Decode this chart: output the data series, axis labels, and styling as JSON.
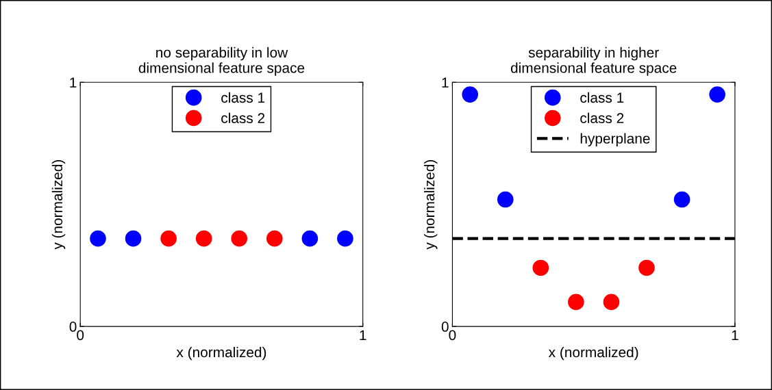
{
  "chart_data": [
    {
      "type": "scatter",
      "title": "no separability in low\ndimensional feature space",
      "xlabel": "x (normalized)",
      "ylabel": "y (normalized)",
      "xlim": [
        0,
        1
      ],
      "ylim": [
        0,
        1
      ],
      "xticks": [
        0,
        1
      ],
      "yticks": [
        0,
        1
      ],
      "grid": false,
      "legend": "top",
      "marker": "circle",
      "series": [
        {
          "name": "class 1",
          "color": "#0000ff",
          "x": [
            0.0625,
            0.1875,
            0.8125,
            0.9375
          ],
          "values": [
            0.36,
            0.36,
            0.36,
            0.36
          ]
        },
        {
          "name": "class 2",
          "color": "#ff0000",
          "x": [
            0.3125,
            0.4375,
            0.5625,
            0.6875
          ],
          "values": [
            0.36,
            0.36,
            0.36,
            0.36
          ]
        }
      ]
    },
    {
      "type": "scatter",
      "title": "separability in higher\ndimensional feature space",
      "xlabel": "x (normalized)",
      "ylabel": "y (normalized)",
      "xlim": [
        0,
        1
      ],
      "ylim": [
        0,
        1
      ],
      "xticks": [
        0,
        1
      ],
      "yticks": [
        0,
        1
      ],
      "grid": false,
      "legend": "top",
      "series": [
        {
          "name": "class 1",
          "color": "#0000ff",
          "marker": "circle",
          "x": [
            0.0625,
            0.1875,
            0.8125,
            0.9375
          ],
          "values": [
            0.95,
            0.52,
            0.52,
            0.95
          ]
        },
        {
          "name": "class 2",
          "color": "#ff0000",
          "marker": "circle",
          "x": [
            0.3125,
            0.4375,
            0.5625,
            0.6875
          ],
          "values": [
            0.24,
            0.1,
            0.1,
            0.24
          ]
        },
        {
          "name": "hyperplane",
          "type": "line",
          "color": "#000000",
          "line_style": "dashed",
          "x": [
            0,
            1
          ],
          "values": [
            0.36,
            0.36
          ]
        }
      ]
    }
  ]
}
